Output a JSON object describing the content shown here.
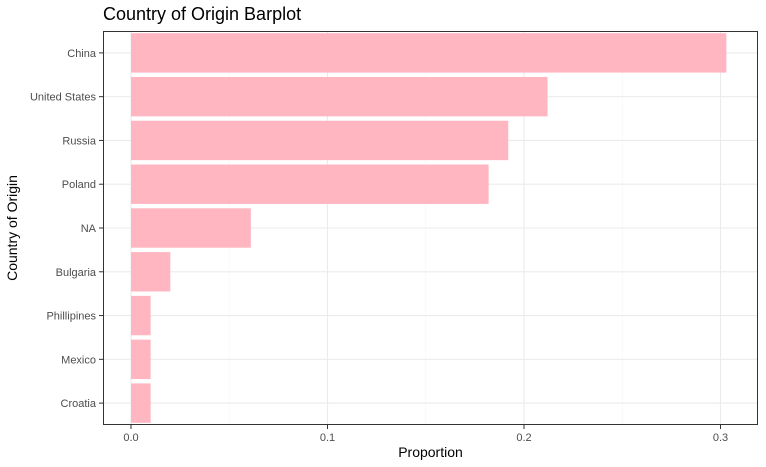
{
  "chart_data": {
    "type": "bar",
    "orientation": "horizontal",
    "title": "Country of Origin Barplot",
    "xlabel": "Proportion",
    "ylabel": "Country of Origin",
    "categories": [
      "China",
      "United States",
      "Russia",
      "Poland",
      "NA",
      "Bulgaria",
      "Phillipines",
      "Mexico",
      "Croatia"
    ],
    "values": [
      0.303,
      0.212,
      0.192,
      0.182,
      0.061,
      0.02,
      0.01,
      0.01,
      0.01
    ],
    "xlim": [
      0,
      0.3
    ],
    "xticks": [
      "0.0",
      "0.1",
      "0.2",
      "0.3"
    ],
    "bar_color": "#FFB6C1",
    "grid": true
  }
}
